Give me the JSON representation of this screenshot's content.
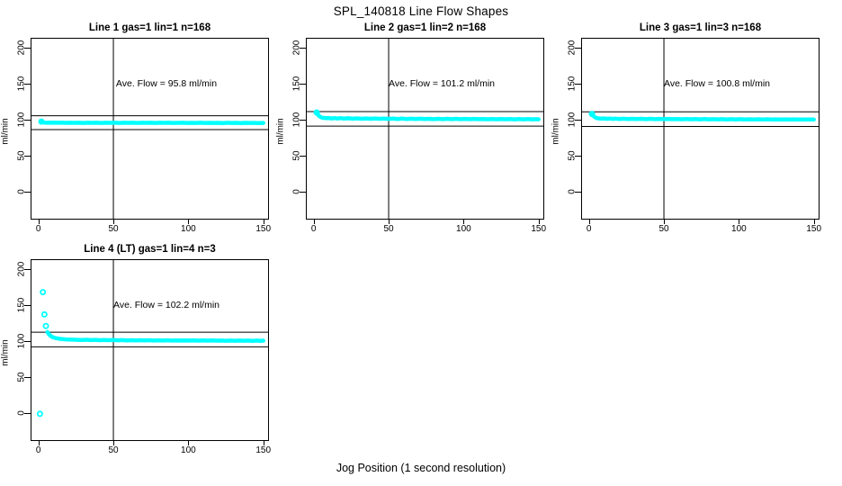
{
  "page": {
    "title": "SPL_140818  Line Flow Shapes",
    "xlabel": "Jog Position (1 second resolution)"
  },
  "axes": {
    "x_ticks": [
      0,
      50,
      100,
      150
    ],
    "y_ticks": [
      0,
      50,
      100,
      150,
      200
    ],
    "xlim": [
      -4.6,
      155
    ],
    "ylim": [
      -37.5,
      212.5
    ],
    "ylabel": "ml/min",
    "vline_x": 50,
    "grid": false
  },
  "colors": {
    "series": "#00ffff",
    "axis": "#000000",
    "background": "#ffffff"
  },
  "chart_data": [
    {
      "type": "scatter",
      "title": "Line 1 gas=1 lin=1 n=168",
      "ave_flow": 95.8,
      "ave_flow_label": "Ave. Flow =  95.8  ml/min",
      "ref_lines": [
        105.4,
        86.2
      ],
      "markers": [
        [
          2,
          97.3
        ]
      ],
      "band": [
        [
          2,
          97.3
        ],
        [
          3,
          96.4
        ],
        [
          4,
          96.0
        ],
        [
          6,
          95.8
        ],
        [
          9,
          96.0
        ],
        [
          12,
          95.7
        ],
        [
          15,
          95.9
        ],
        [
          18,
          95.6
        ],
        [
          21,
          95.8
        ],
        [
          24,
          95.6
        ],
        [
          27,
          95.8
        ],
        [
          30,
          95.5
        ],
        [
          33,
          95.7
        ],
        [
          36,
          95.6
        ],
        [
          39,
          95.8
        ],
        [
          42,
          95.5
        ],
        [
          45,
          95.7
        ],
        [
          48,
          95.6
        ],
        [
          51,
          95.7
        ],
        [
          54,
          95.5
        ],
        [
          57,
          95.7
        ],
        [
          60,
          95.6
        ],
        [
          63,
          95.8
        ],
        [
          66,
          95.5
        ],
        [
          69,
          95.7
        ],
        [
          72,
          95.6
        ],
        [
          75,
          95.7
        ],
        [
          78,
          95.5
        ],
        [
          81,
          95.7
        ],
        [
          84,
          95.6
        ],
        [
          87,
          95.7
        ],
        [
          90,
          95.5
        ],
        [
          93,
          95.6
        ],
        [
          96,
          95.7
        ],
        [
          99,
          95.5
        ],
        [
          102,
          95.6
        ],
        [
          105,
          95.5
        ],
        [
          108,
          95.7
        ],
        [
          111,
          95.5
        ],
        [
          114,
          95.6
        ],
        [
          117,
          95.5
        ],
        [
          120,
          95.6
        ],
        [
          123,
          95.4
        ],
        [
          126,
          95.6
        ],
        [
          129,
          95.5
        ],
        [
          132,
          95.6
        ],
        [
          135,
          95.4
        ],
        [
          138,
          95.6
        ],
        [
          141,
          95.5
        ],
        [
          144,
          95.5
        ],
        [
          147,
          95.4
        ],
        [
          150,
          95.5
        ]
      ]
    },
    {
      "type": "scatter",
      "title": "Line 2 gas=1 lin=2 n=168",
      "ave_flow": 101.2,
      "ave_flow_label": "Ave. Flow =  101.2  ml/min",
      "ref_lines": [
        111.3,
        91.1
      ],
      "markers": [
        [
          2,
          110
        ]
      ],
      "band": [
        [
          2,
          110
        ],
        [
          3,
          106.5
        ],
        [
          4,
          104.5
        ],
        [
          5,
          103.2
        ],
        [
          6,
          102.6
        ],
        [
          8,
          102.2
        ],
        [
          10,
          102.4
        ],
        [
          12,
          101.8
        ],
        [
          14,
          102.3
        ],
        [
          16,
          101.6
        ],
        [
          18,
          102.2
        ],
        [
          20,
          101.5
        ],
        [
          23,
          102.0
        ],
        [
          26,
          101.4
        ],
        [
          29,
          101.9
        ],
        [
          32,
          101.3
        ],
        [
          35,
          101.8
        ],
        [
          38,
          101.2
        ],
        [
          41,
          101.7
        ],
        [
          44,
          101.2
        ],
        [
          47,
          101.6
        ],
        [
          50,
          101.1
        ],
        [
          53,
          101.6
        ],
        [
          56,
          101.0
        ],
        [
          59,
          101.5
        ],
        [
          62,
          101.0
        ],
        [
          65,
          101.4
        ],
        [
          68,
          100.9
        ],
        [
          71,
          101.4
        ],
        [
          74,
          100.9
        ],
        [
          77,
          101.3
        ],
        [
          80,
          100.8
        ],
        [
          83,
          101.3
        ],
        [
          86,
          100.8
        ],
        [
          89,
          101.2
        ],
        [
          92,
          100.8
        ],
        [
          95,
          101.2
        ],
        [
          98,
          100.7
        ],
        [
          101,
          101.1
        ],
        [
          104,
          100.7
        ],
        [
          107,
          101.1
        ],
        [
          110,
          100.7
        ],
        [
          113,
          101.0
        ],
        [
          116,
          100.6
        ],
        [
          119,
          101.0
        ],
        [
          122,
          100.6
        ],
        [
          125,
          101.0
        ],
        [
          128,
          100.6
        ],
        [
          131,
          100.9
        ],
        [
          134,
          100.5
        ],
        [
          137,
          100.9
        ],
        [
          140,
          100.5
        ],
        [
          143,
          100.9
        ],
        [
          146,
          100.5
        ],
        [
          148,
          100.8
        ],
        [
          150,
          100.6
        ]
      ]
    },
    {
      "type": "scatter",
      "title": "Line 3 gas=1 lin=3 n=168",
      "ave_flow": 100.8,
      "ave_flow_label": "Ave. Flow =  100.8  ml/min",
      "ref_lines": [
        110.9,
        90.7
      ],
      "markers": [
        [
          2,
          108
        ]
      ],
      "band": [
        [
          2,
          108
        ],
        [
          3,
          105.2
        ],
        [
          4,
          103.4
        ],
        [
          5,
          102.4
        ],
        [
          6,
          101.9
        ],
        [
          8,
          101.5
        ],
        [
          10,
          101.7
        ],
        [
          12,
          101.2
        ],
        [
          14,
          101.6
        ],
        [
          16,
          101.1
        ],
        [
          18,
          101.5
        ],
        [
          20,
          101.0
        ],
        [
          23,
          101.4
        ],
        [
          26,
          100.9
        ],
        [
          29,
          101.3
        ],
        [
          32,
          100.9
        ],
        [
          35,
          101.3
        ],
        [
          38,
          100.8
        ],
        [
          41,
          101.2
        ],
        [
          44,
          100.8
        ],
        [
          47,
          101.1
        ],
        [
          50,
          100.7
        ],
        [
          53,
          101.1
        ],
        [
          56,
          100.7
        ],
        [
          59,
          101.0
        ],
        [
          62,
          100.6
        ],
        [
          65,
          101.0
        ],
        [
          68,
          100.6
        ],
        [
          71,
          100.9
        ],
        [
          74,
          100.5
        ],
        [
          77,
          100.9
        ],
        [
          80,
          100.5
        ],
        [
          83,
          100.8
        ],
        [
          86,
          100.5
        ],
        [
          89,
          100.8
        ],
        [
          92,
          100.4
        ],
        [
          95,
          100.7
        ],
        [
          98,
          100.4
        ],
        [
          101,
          100.7
        ],
        [
          104,
          100.4
        ],
        [
          107,
          100.6
        ],
        [
          110,
          100.3
        ],
        [
          113,
          100.6
        ],
        [
          116,
          100.3
        ],
        [
          119,
          100.6
        ],
        [
          122,
          100.3
        ],
        [
          125,
          100.5
        ],
        [
          128,
          100.2
        ],
        [
          131,
          100.5
        ],
        [
          134,
          100.2
        ],
        [
          137,
          100.5
        ],
        [
          140,
          100.2
        ],
        [
          143,
          100.4
        ],
        [
          146,
          100.2
        ],
        [
          148,
          100.4
        ],
        [
          150,
          100.3
        ]
      ]
    },
    {
      "type": "scatter",
      "title": "Line 4 (LT) gas=1 lin=4 n=3",
      "ave_flow": 102.2,
      "ave_flow_label": "Ave. Flow =  102.2  ml/min",
      "ref_lines": [
        112.4,
        92.0
      ],
      "markers": [
        [
          1,
          -1
        ],
        [
          3,
          168
        ],
        [
          4,
          137
        ],
        [
          5,
          121
        ]
      ],
      "band": [
        [
          6,
          112.5
        ],
        [
          7,
          109.5
        ],
        [
          8,
          107.5
        ],
        [
          9,
          106.0
        ],
        [
          10,
          105.0
        ],
        [
          12,
          104.0
        ],
        [
          14,
          103.3
        ],
        [
          16,
          102.8
        ],
        [
          18,
          102.4
        ],
        [
          20,
          102.2
        ],
        [
          23,
          102.0
        ],
        [
          26,
          101.8
        ],
        [
          29,
          101.6
        ],
        [
          32,
          101.9
        ],
        [
          35,
          101.4
        ],
        [
          38,
          101.7
        ],
        [
          41,
          101.3
        ],
        [
          44,
          101.6
        ],
        [
          47,
          101.2
        ],
        [
          50,
          101.5
        ],
        [
          53,
          101.1
        ],
        [
          56,
          101.4
        ],
        [
          59,
          101.0
        ],
        [
          62,
          101.3
        ],
        [
          65,
          100.9
        ],
        [
          68,
          101.2
        ],
        [
          71,
          100.9
        ],
        [
          74,
          101.2
        ],
        [
          77,
          100.8
        ],
        [
          80,
          101.1
        ],
        [
          83,
          100.8
        ],
        [
          86,
          101.1
        ],
        [
          89,
          100.7
        ],
        [
          92,
          101.0
        ],
        [
          95,
          100.7
        ],
        [
          98,
          101.0
        ],
        [
          101,
          100.7
        ],
        [
          104,
          100.9
        ],
        [
          107,
          100.6
        ],
        [
          110,
          100.9
        ],
        [
          113,
          100.6
        ],
        [
          116,
          100.9
        ],
        [
          119,
          100.6
        ],
        [
          122,
          100.8
        ],
        [
          125,
          100.5
        ],
        [
          128,
          100.8
        ],
        [
          131,
          100.5
        ],
        [
          134,
          100.8
        ],
        [
          137,
          100.5
        ],
        [
          140,
          100.7
        ],
        [
          143,
          100.4
        ],
        [
          146,
          100.7
        ],
        [
          148,
          100.4
        ],
        [
          150,
          100.6
        ]
      ]
    }
  ]
}
